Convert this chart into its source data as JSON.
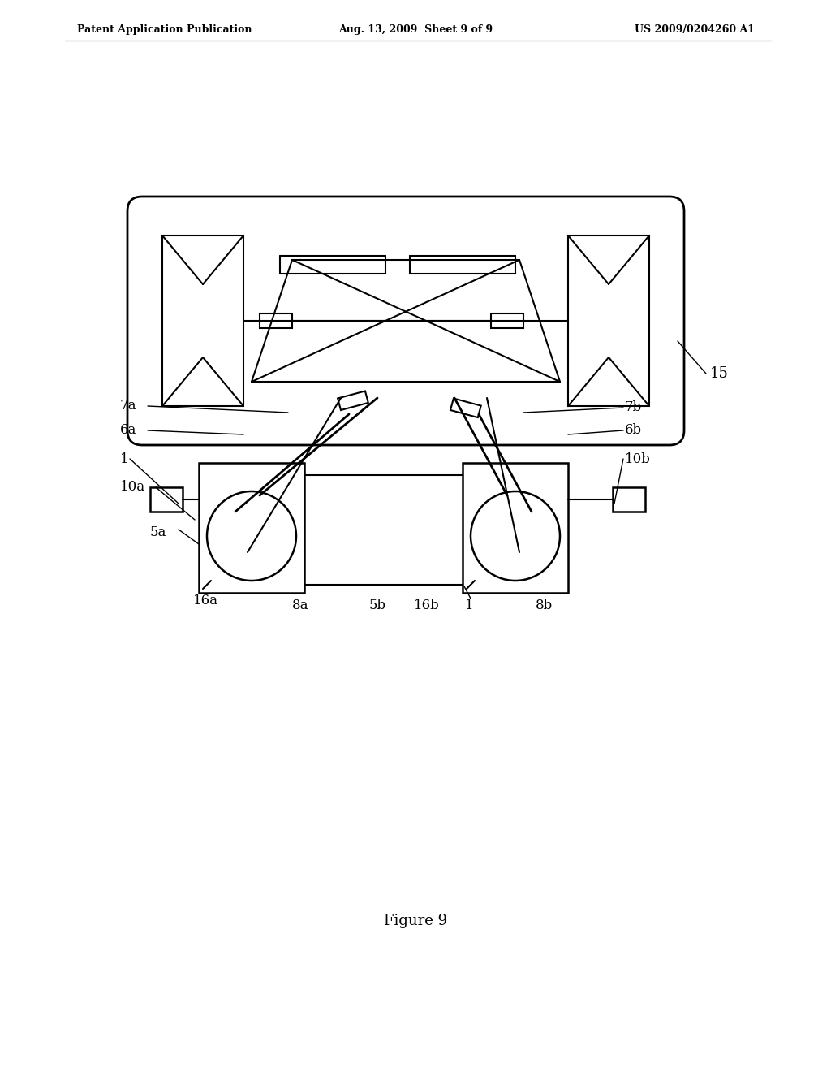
{
  "title_left": "Patent Application Publication",
  "title_mid": "Aug. 13, 2009  Sheet 9 of 9",
  "title_right": "US 2009/0204260 A1",
  "figure_label": "Figure 9",
  "bg_color": "#ffffff",
  "line_color": "#000000",
  "label_15": "15",
  "label_7a": "7a",
  "label_7b": "7b",
  "label_6a": "6a",
  "label_6b": "6b",
  "label_1a": "1",
  "label_1b": "1",
  "label_10a": "10a",
  "label_10b": "10b",
  "label_5a": "5a",
  "label_5b": "5b",
  "label_8a": "8a",
  "label_8b": "8b",
  "label_16a": "16a",
  "label_16b": "16b"
}
